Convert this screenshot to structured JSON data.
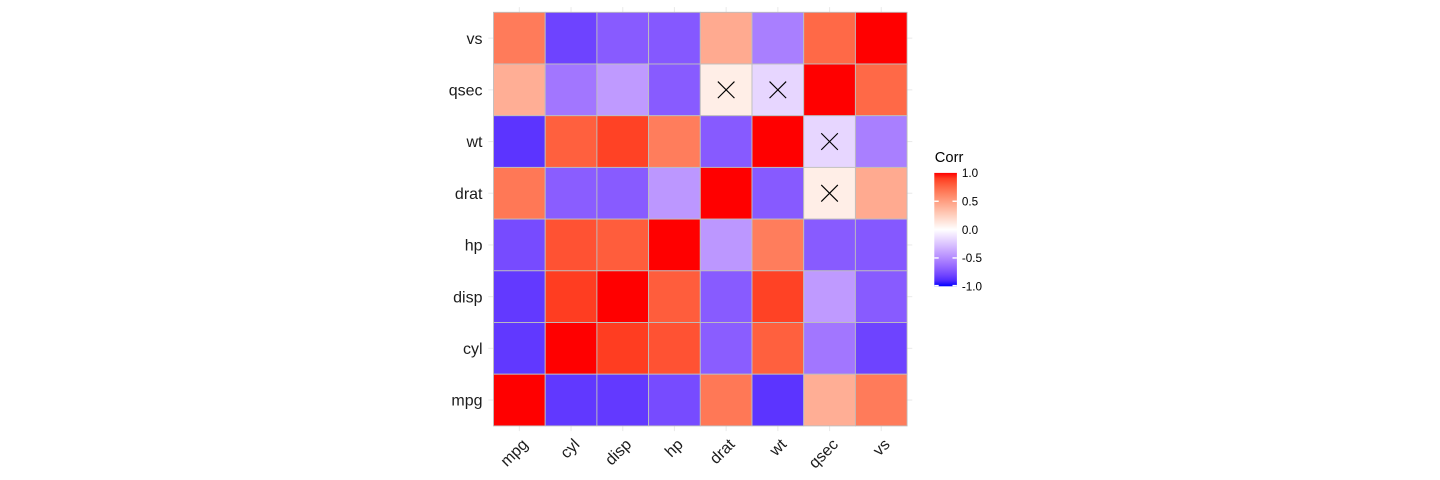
{
  "figure": {
    "background": "#FFFFFF"
  },
  "chart_data": {
    "type": "heatmap",
    "subtype": "correlation-matrix",
    "x_categories": [
      "mpg",
      "cyl",
      "disp",
      "hp",
      "drat",
      "wt",
      "qsec",
      "vs"
    ],
    "y_categories_top_to_bottom": [
      "vs",
      "qsec",
      "wt",
      "drat",
      "hp",
      "disp",
      "cyl",
      "mpg"
    ],
    "values_rows_top_to_bottom": [
      [
        0.664,
        -0.811,
        -0.71,
        -0.723,
        0.44,
        -0.555,
        0.745,
        1.0
      ],
      [
        0.419,
        -0.591,
        -0.434,
        -0.708,
        0.091,
        -0.175,
        1.0,
        0.745
      ],
      [
        -0.868,
        0.782,
        0.888,
        0.659,
        -0.712,
        1.0,
        -0.175,
        -0.555
      ],
      [
        0.681,
        -0.7,
        -0.71,
        -0.449,
        1.0,
        -0.712,
        0.091,
        0.44
      ],
      [
        -0.776,
        0.832,
        0.791,
        1.0,
        -0.449,
        0.659,
        -0.708,
        -0.723
      ],
      [
        -0.848,
        0.902,
        1.0,
        0.791,
        -0.71,
        0.888,
        -0.434,
        -0.71
      ],
      [
        -0.852,
        1.0,
        0.902,
        0.832,
        -0.7,
        0.782,
        -0.591,
        -0.811
      ],
      [
        1.0,
        -0.852,
        -0.848,
        -0.776,
        0.681,
        -0.868,
        0.419,
        0.664
      ]
    ],
    "cell_fills_rows_top_to_bottom": [
      [
        "#FF7B5A",
        "#6E43FF",
        "#885BFF",
        "#8558FF",
        "#FFAA90",
        "#A97FFF",
        "#FF6947",
        "#FF0000"
      ],
      [
        "#FFAE95",
        "#A276FF",
        "#BF9AFF",
        "#885BFF",
        "#FFEEE7",
        "#E7D6FF",
        "#FF0000",
        "#FF6947"
      ],
      [
        "#5C34FF",
        "#FF603E",
        "#FF4225",
        "#FF7D5C",
        "#875AFF",
        "#FF0000",
        "#E7D6FF",
        "#A97FFF"
      ],
      [
        "#FF7856",
        "#8A5DFF",
        "#885BFF",
        "#BC97FF",
        "#FF0000",
        "#875AFF",
        "#FFEEE7",
        "#FFAA90"
      ],
      [
        "#774BFF",
        "#FF5233",
        "#FF5D3C",
        "#FF0000",
        "#BC97FF",
        "#FF7D5C",
        "#885BFF",
        "#8558FF"
      ],
      [
        "#6339FF",
        "#FF3D21",
        "#FF0000",
        "#FF5D3C",
        "#885BFF",
        "#FF4225",
        "#BF9AFF",
        "#885BFF"
      ],
      [
        "#6138FF",
        "#FF0000",
        "#FF3D21",
        "#FF5233",
        "#8A5DFF",
        "#FF603E",
        "#A276FF",
        "#6E43FF"
      ],
      [
        "#FF0000",
        "#6138FF",
        "#6339FF",
        "#774BFF",
        "#FF7856",
        "#5C34FF",
        "#FFAE95",
        "#FF7B5A"
      ]
    ],
    "crossed_out_cells": [
      {
        "row": "qsec",
        "col": "drat",
        "value": 0.091
      },
      {
        "row": "qsec",
        "col": "wt",
        "value": -0.175
      },
      {
        "row": "wt",
        "col": "qsec",
        "value": -0.175
      },
      {
        "row": "drat",
        "col": "qsec",
        "value": 0.091
      }
    ],
    "legend": {
      "title": "Corr",
      "position": "right",
      "tick_labels": [
        "1.0",
        "0.5",
        "0.0",
        "-0.5",
        "-1.0"
      ],
      "tick_values": [
        1.0,
        0.5,
        0.0,
        -0.5,
        -1.0
      ],
      "range": [
        -1.0,
        1.0
      ],
      "gradient_stops_top_to_bottom": [
        "#FF0000",
        "#FF3E22",
        "#FF5B3A",
        "#FF7352",
        "#FF8969",
        "#FF9E81",
        "#FFB299",
        "#FFC6B2",
        "#FFD9CB",
        "#FFECE5",
        "#FFFFFF",
        "#F2E7FF",
        "#E3D0FF",
        "#D4B9FF",
        "#C4A2FF",
        "#B38BFF",
        "#A074FF",
        "#8A5DFF",
        "#7145FF",
        "#502BFF",
        "#0000FF"
      ]
    },
    "colors": {
      "high": "#FF0000",
      "mid": "#FFFFFF",
      "low": "#0000FF",
      "tile_outline": "#BEBEBE",
      "grid_stub": "#EBEBEB",
      "axis_text": "#1C1C1C",
      "legend_title_text": "#000000",
      "legend_tick_text": "#000000",
      "cross_mark": "#000000",
      "legend_tick_mark": "#FFFFFF"
    },
    "axes": {
      "x_label_angle_deg": 45,
      "grid": "stubs-outside-tiles"
    }
  }
}
